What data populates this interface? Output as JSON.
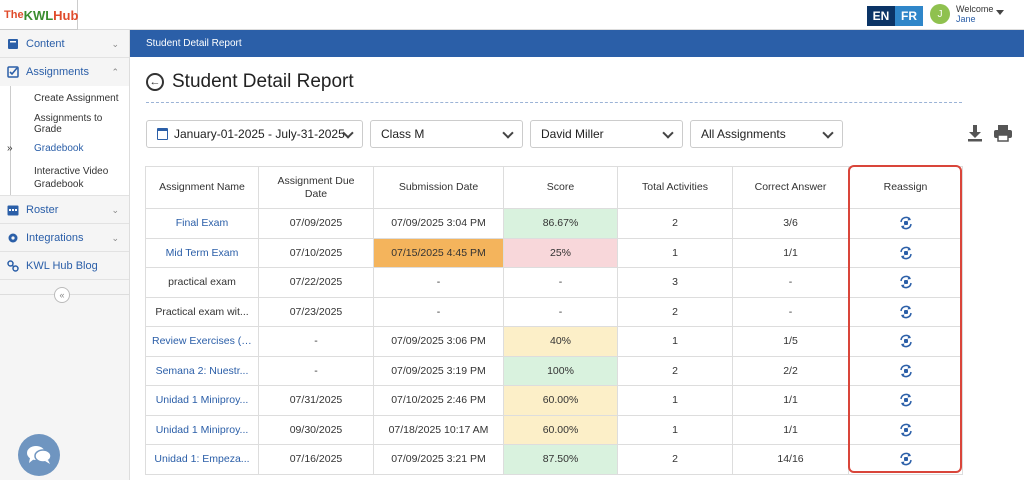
{
  "brand": {
    "the": "The",
    "kwl": "KWL",
    "hub": "Hub"
  },
  "header": {
    "lang_en": "EN",
    "lang_fr": "FR",
    "avatar_initial": "J",
    "welcome": "Welcome",
    "user_name": "Jane"
  },
  "sidebar": {
    "items": [
      {
        "label": "Content",
        "icon": "book-icon"
      },
      {
        "label": "Assignments",
        "icon": "checkbox-icon"
      },
      {
        "label": "Roster",
        "icon": "calendar-icon"
      },
      {
        "label": "Integrations",
        "icon": "gear-icon"
      },
      {
        "label": "KWL Hub Blog",
        "icon": "link-icon"
      }
    ],
    "sub_items": [
      "Create Assignment",
      "Assignments to Grade",
      "Gradebook",
      "Interactive Video Gradebook"
    ],
    "collapse_glyph": "«"
  },
  "strip": {
    "breadcrumb": "Student Detail Report"
  },
  "page": {
    "title": "Student Detail Report"
  },
  "filters": {
    "date_range": "January-01-2025 - July-31-2025",
    "class": "Class M",
    "student": "David Miller",
    "assignments": "All Assignments"
  },
  "table": {
    "headers": [
      "Assignment Name",
      "Assignment Due Date",
      "Submission Date",
      "Score",
      "Total Activities",
      "Correct Answer",
      "Reassign"
    ],
    "rows": [
      {
        "name": "Final Exam",
        "due": "07/09/2025",
        "submitted": "07/09/2025 3:04 PM",
        "score": "86.67%",
        "total": "2",
        "correct": "3/6"
      },
      {
        "name": "Mid Term Exam",
        "due": "07/10/2025",
        "submitted": "07/15/2025 4:45 PM",
        "score": "25%",
        "total": "1",
        "correct": "1/1"
      },
      {
        "name": "practical exam",
        "due": "07/22/2025",
        "submitted": "-",
        "score": "-",
        "total": "3",
        "correct": "-"
      },
      {
        "name": "Practical exam wit...",
        "due": "07/23/2025",
        "submitted": "-",
        "score": "-",
        "total": "2",
        "correct": "-"
      },
      {
        "name": "Review Exercises (I...",
        "due": "-",
        "submitted": "07/09/2025 3:06 PM",
        "score": "40%",
        "total": "1",
        "correct": "1/5"
      },
      {
        "name": "Semana 2: Nuestr...",
        "due": "-",
        "submitted": "07/09/2025 3:19 PM",
        "score": "100%",
        "total": "2",
        "correct": "2/2"
      },
      {
        "name": "Unidad 1 Miniproy...",
        "due": "07/31/2025",
        "submitted": "07/10/2025 2:46 PM",
        "score": "60.00%",
        "total": "1",
        "correct": "1/1"
      },
      {
        "name": "Unidad 1 Miniproy...",
        "due": "09/30/2025",
        "submitted": "07/18/2025 10:17 AM",
        "score": "60.00%",
        "total": "1",
        "correct": "1/1"
      },
      {
        "name": "Unidad 1: Empeza...",
        "due": "07/16/2025",
        "submitted": "07/09/2025 3:21 PM",
        "score": "87.50%",
        "total": "2",
        "correct": "14/16"
      }
    ]
  },
  "colors": {
    "brand_blue": "#2b5fa8",
    "link_blue": "#2a5ea8",
    "score_high": "#d9f2de",
    "score_low": "#f8d7da",
    "score_mid": "#fcefc8",
    "late_submission": "#f4b45c",
    "highlight_red": "#d9453a"
  }
}
